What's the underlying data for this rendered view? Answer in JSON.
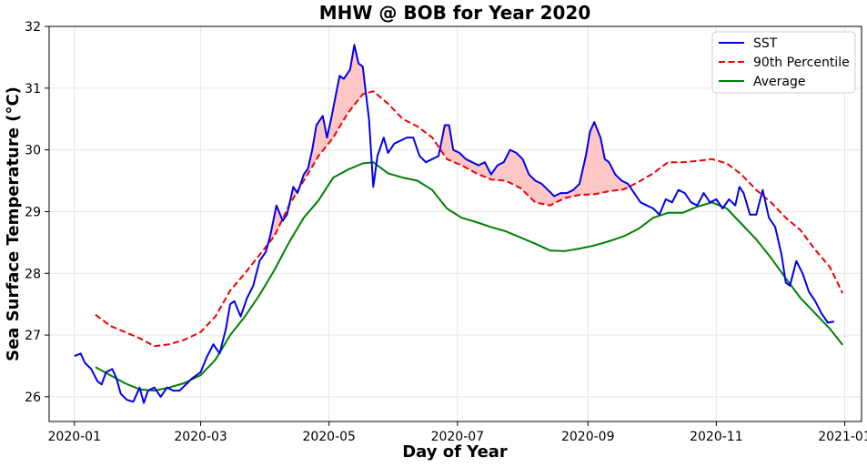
{
  "chart_data": {
    "type": "line",
    "title": "MHW @ BOB for Year 2020",
    "xlabel": "Day of Year",
    "ylabel": "Sea Surface Temperature (°C)",
    "x_ticks": [
      "2020-01",
      "2020-03",
      "2020-05",
      "2020-07",
      "2020-09",
      "2020-11",
      "2021-01"
    ],
    "y_ticks": [
      26,
      27,
      28,
      29,
      30,
      31,
      32
    ],
    "ylim": [
      25.6,
      32.0
    ],
    "xlim": [
      "2019-12-20",
      "2021-01-09"
    ],
    "grid": true,
    "legend_position": "top-right",
    "shading": {
      "between": [
        "SST",
        "90th Percentile"
      ],
      "where": "SST above 90th Percentile",
      "color": "#ffb3b3"
    },
    "series": [
      {
        "name": "SST",
        "color": "#0000ee",
        "style": "solid",
        "points": [
          [
            "2020-01-01",
            26.66
          ],
          [
            "2020-01-04",
            26.7
          ],
          [
            "2020-01-06",
            26.55
          ],
          [
            "2020-01-09",
            26.45
          ],
          [
            "2020-01-12",
            26.25
          ],
          [
            "2020-01-14",
            26.2
          ],
          [
            "2020-01-16",
            26.4
          ],
          [
            "2020-01-19",
            26.45
          ],
          [
            "2020-01-21",
            26.3
          ],
          [
            "2020-01-23",
            26.05
          ],
          [
            "2020-01-26",
            25.95
          ],
          [
            "2020-01-29",
            25.92
          ],
          [
            "2020-02-01",
            26.15
          ],
          [
            "2020-02-03",
            25.9
          ],
          [
            "2020-02-05",
            26.1
          ],
          [
            "2020-02-08",
            26.15
          ],
          [
            "2020-02-11",
            26.0
          ],
          [
            "2020-02-14",
            26.15
          ],
          [
            "2020-02-17",
            26.1
          ],
          [
            "2020-02-20",
            26.1
          ],
          [
            "2020-02-23",
            26.2
          ],
          [
            "2020-02-26",
            26.3
          ],
          [
            "2020-03-01",
            26.4
          ],
          [
            "2020-03-04",
            26.65
          ],
          [
            "2020-03-07",
            26.85
          ],
          [
            "2020-03-10",
            26.7
          ],
          [
            "2020-03-13",
            27.1
          ],
          [
            "2020-03-15",
            27.5
          ],
          [
            "2020-03-17",
            27.55
          ],
          [
            "2020-03-20",
            27.3
          ],
          [
            "2020-03-23",
            27.6
          ],
          [
            "2020-03-26",
            27.8
          ],
          [
            "2020-03-29",
            28.2
          ],
          [
            "2020-04-01",
            28.35
          ],
          [
            "2020-04-03",
            28.6
          ],
          [
            "2020-04-06",
            29.1
          ],
          [
            "2020-04-09",
            28.85
          ],
          [
            "2020-04-11",
            28.95
          ],
          [
            "2020-04-14",
            29.4
          ],
          [
            "2020-04-16",
            29.3
          ],
          [
            "2020-04-19",
            29.6
          ],
          [
            "2020-04-21",
            29.7
          ],
          [
            "2020-04-23",
            30.0
          ],
          [
            "2020-04-25",
            30.4
          ],
          [
            "2020-04-28",
            30.55
          ],
          [
            "2020-04-30",
            30.2
          ],
          [
            "2020-05-02",
            30.5
          ],
          [
            "2020-05-04",
            30.85
          ],
          [
            "2020-05-06",
            31.2
          ],
          [
            "2020-05-08",
            31.15
          ],
          [
            "2020-05-11",
            31.3
          ],
          [
            "2020-05-13",
            31.7
          ],
          [
            "2020-05-15",
            31.4
          ],
          [
            "2020-05-17",
            31.35
          ],
          [
            "2020-05-20",
            30.5
          ],
          [
            "2020-05-22",
            29.4
          ],
          [
            "2020-05-24",
            29.9
          ],
          [
            "2020-05-27",
            30.2
          ],
          [
            "2020-05-29",
            29.95
          ],
          [
            "2020-06-01",
            30.1
          ],
          [
            "2020-06-04",
            30.15
          ],
          [
            "2020-06-07",
            30.2
          ],
          [
            "2020-06-10",
            30.2
          ],
          [
            "2020-06-13",
            29.9
          ],
          [
            "2020-06-16",
            29.8
          ],
          [
            "2020-06-19",
            29.85
          ],
          [
            "2020-06-22",
            29.9
          ],
          [
            "2020-06-25",
            30.4
          ],
          [
            "2020-06-27",
            30.4
          ],
          [
            "2020-06-29",
            30.0
          ],
          [
            "2020-07-02",
            29.95
          ],
          [
            "2020-07-05",
            29.85
          ],
          [
            "2020-07-08",
            29.8
          ],
          [
            "2020-07-11",
            29.75
          ],
          [
            "2020-07-14",
            29.8
          ],
          [
            "2020-07-17",
            29.6
          ],
          [
            "2020-07-20",
            29.75
          ],
          [
            "2020-07-23",
            29.8
          ],
          [
            "2020-07-26",
            30.0
          ],
          [
            "2020-07-29",
            29.95
          ],
          [
            "2020-08-01",
            29.85
          ],
          [
            "2020-08-04",
            29.6
          ],
          [
            "2020-08-07",
            29.5
          ],
          [
            "2020-08-10",
            29.45
          ],
          [
            "2020-08-13",
            29.35
          ],
          [
            "2020-08-16",
            29.25
          ],
          [
            "2020-08-19",
            29.3
          ],
          [
            "2020-08-22",
            29.3
          ],
          [
            "2020-08-25",
            29.35
          ],
          [
            "2020-08-28",
            29.45
          ],
          [
            "2020-08-31",
            29.9
          ],
          [
            "2020-09-02",
            30.3
          ],
          [
            "2020-09-04",
            30.45
          ],
          [
            "2020-09-07",
            30.2
          ],
          [
            "2020-09-09",
            29.85
          ],
          [
            "2020-09-11",
            29.8
          ],
          [
            "2020-09-14",
            29.6
          ],
          [
            "2020-09-17",
            29.5
          ],
          [
            "2020-09-20",
            29.45
          ],
          [
            "2020-09-23",
            29.3
          ],
          [
            "2020-09-26",
            29.15
          ],
          [
            "2020-09-29",
            29.1
          ],
          [
            "2020-10-02",
            29.05
          ],
          [
            "2020-10-05",
            28.95
          ],
          [
            "2020-10-08",
            29.2
          ],
          [
            "2020-10-11",
            29.15
          ],
          [
            "2020-10-14",
            29.35
          ],
          [
            "2020-10-17",
            29.3
          ],
          [
            "2020-10-20",
            29.15
          ],
          [
            "2020-10-23",
            29.1
          ],
          [
            "2020-10-26",
            29.3
          ],
          [
            "2020-10-29",
            29.15
          ],
          [
            "2020-11-01",
            29.2
          ],
          [
            "2020-11-04",
            29.05
          ],
          [
            "2020-11-07",
            29.2
          ],
          [
            "2020-11-10",
            29.1
          ],
          [
            "2020-11-12",
            29.4
          ],
          [
            "2020-11-14",
            29.3
          ],
          [
            "2020-11-17",
            28.95
          ],
          [
            "2020-11-20",
            28.95
          ],
          [
            "2020-11-23",
            29.35
          ],
          [
            "2020-11-26",
            28.9
          ],
          [
            "2020-11-29",
            28.75
          ],
          [
            "2020-12-02",
            28.3
          ],
          [
            "2020-12-04",
            27.85
          ],
          [
            "2020-12-06",
            27.8
          ],
          [
            "2020-12-09",
            28.2
          ],
          [
            "2020-12-12",
            28.0
          ],
          [
            "2020-12-15",
            27.7
          ],
          [
            "2020-12-18",
            27.55
          ],
          [
            "2020-12-21",
            27.35
          ],
          [
            "2020-12-24",
            27.2
          ],
          [
            "2020-12-27",
            27.22
          ]
        ]
      },
      {
        "name": "90th Percentile",
        "color": "#ee0000",
        "style": "dashed",
        "points": [
          [
            "2020-01-11",
            27.33
          ],
          [
            "2020-01-18",
            27.15
          ],
          [
            "2020-01-25",
            27.05
          ],
          [
            "2020-02-01",
            26.95
          ],
          [
            "2020-02-08",
            26.82
          ],
          [
            "2020-02-15",
            26.85
          ],
          [
            "2020-02-22",
            26.92
          ],
          [
            "2020-03-01",
            27.05
          ],
          [
            "2020-03-08",
            27.3
          ],
          [
            "2020-03-15",
            27.72
          ],
          [
            "2020-03-22",
            28.0
          ],
          [
            "2020-03-29",
            28.3
          ],
          [
            "2020-04-05",
            28.6
          ],
          [
            "2020-04-12",
            29.1
          ],
          [
            "2020-04-19",
            29.5
          ],
          [
            "2020-04-26",
            29.9
          ],
          [
            "2020-05-03",
            30.2
          ],
          [
            "2020-05-10",
            30.6
          ],
          [
            "2020-05-17",
            30.9
          ],
          [
            "2020-05-22",
            30.95
          ],
          [
            "2020-05-29",
            30.75
          ],
          [
            "2020-06-05",
            30.5
          ],
          [
            "2020-06-12",
            30.38
          ],
          [
            "2020-06-19",
            30.2
          ],
          [
            "2020-06-26",
            29.85
          ],
          [
            "2020-07-03",
            29.75
          ],
          [
            "2020-07-10",
            29.62
          ],
          [
            "2020-07-17",
            29.52
          ],
          [
            "2020-07-24",
            29.5
          ],
          [
            "2020-07-31",
            29.38
          ],
          [
            "2020-08-07",
            29.15
          ],
          [
            "2020-08-14",
            29.1
          ],
          [
            "2020-08-21",
            29.22
          ],
          [
            "2020-08-28",
            29.27
          ],
          [
            "2020-09-04",
            29.28
          ],
          [
            "2020-09-11",
            29.33
          ],
          [
            "2020-09-18",
            29.36
          ],
          [
            "2020-09-25",
            29.48
          ],
          [
            "2020-10-02",
            29.62
          ],
          [
            "2020-10-09",
            29.8
          ],
          [
            "2020-10-16",
            29.8
          ],
          [
            "2020-10-23",
            29.82
          ],
          [
            "2020-10-30",
            29.85
          ],
          [
            "2020-11-06",
            29.78
          ],
          [
            "2020-11-13",
            29.6
          ],
          [
            "2020-11-20",
            29.35
          ],
          [
            "2020-11-27",
            29.15
          ],
          [
            "2020-12-04",
            28.9
          ],
          [
            "2020-12-11",
            28.7
          ],
          [
            "2020-12-18",
            28.38
          ],
          [
            "2020-12-25",
            28.1
          ],
          [
            "2020-12-31",
            27.68
          ]
        ]
      },
      {
        "name": "Average",
        "color": "#008000",
        "style": "solid",
        "points": [
          [
            "2020-01-11",
            26.48
          ],
          [
            "2020-01-18",
            26.35
          ],
          [
            "2020-01-25",
            26.22
          ],
          [
            "2020-02-01",
            26.12
          ],
          [
            "2020-02-08",
            26.1
          ],
          [
            "2020-02-15",
            26.15
          ],
          [
            "2020-02-22",
            26.22
          ],
          [
            "2020-03-01",
            26.35
          ],
          [
            "2020-03-08",
            26.6
          ],
          [
            "2020-03-15",
            27.0
          ],
          [
            "2020-03-22",
            27.3
          ],
          [
            "2020-03-29",
            27.65
          ],
          [
            "2020-04-05",
            28.05
          ],
          [
            "2020-04-12",
            28.5
          ],
          [
            "2020-04-19",
            28.9
          ],
          [
            "2020-04-26",
            29.18
          ],
          [
            "2020-05-03",
            29.55
          ],
          [
            "2020-05-10",
            29.68
          ],
          [
            "2020-05-17",
            29.78
          ],
          [
            "2020-05-22",
            29.8
          ],
          [
            "2020-05-29",
            29.62
          ],
          [
            "2020-06-05",
            29.55
          ],
          [
            "2020-06-12",
            29.5
          ],
          [
            "2020-06-19",
            29.35
          ],
          [
            "2020-06-26",
            29.05
          ],
          [
            "2020-07-03",
            28.9
          ],
          [
            "2020-07-10",
            28.83
          ],
          [
            "2020-07-17",
            28.75
          ],
          [
            "2020-07-24",
            28.68
          ],
          [
            "2020-07-31",
            28.58
          ],
          [
            "2020-08-07",
            28.48
          ],
          [
            "2020-08-14",
            28.37
          ],
          [
            "2020-08-21",
            28.36
          ],
          [
            "2020-08-28",
            28.4
          ],
          [
            "2020-09-04",
            28.45
          ],
          [
            "2020-09-11",
            28.52
          ],
          [
            "2020-09-18",
            28.6
          ],
          [
            "2020-09-25",
            28.72
          ],
          [
            "2020-10-02",
            28.9
          ],
          [
            "2020-10-09",
            28.98
          ],
          [
            "2020-10-16",
            28.98
          ],
          [
            "2020-10-23",
            29.08
          ],
          [
            "2020-10-30",
            29.15
          ],
          [
            "2020-11-06",
            29.05
          ],
          [
            "2020-11-13",
            28.8
          ],
          [
            "2020-11-20",
            28.55
          ],
          [
            "2020-11-27",
            28.25
          ],
          [
            "2020-12-04",
            27.92
          ],
          [
            "2020-12-11",
            27.6
          ],
          [
            "2020-12-18",
            27.35
          ],
          [
            "2020-12-25",
            27.1
          ],
          [
            "2020-12-31",
            26.84
          ]
        ]
      }
    ]
  }
}
